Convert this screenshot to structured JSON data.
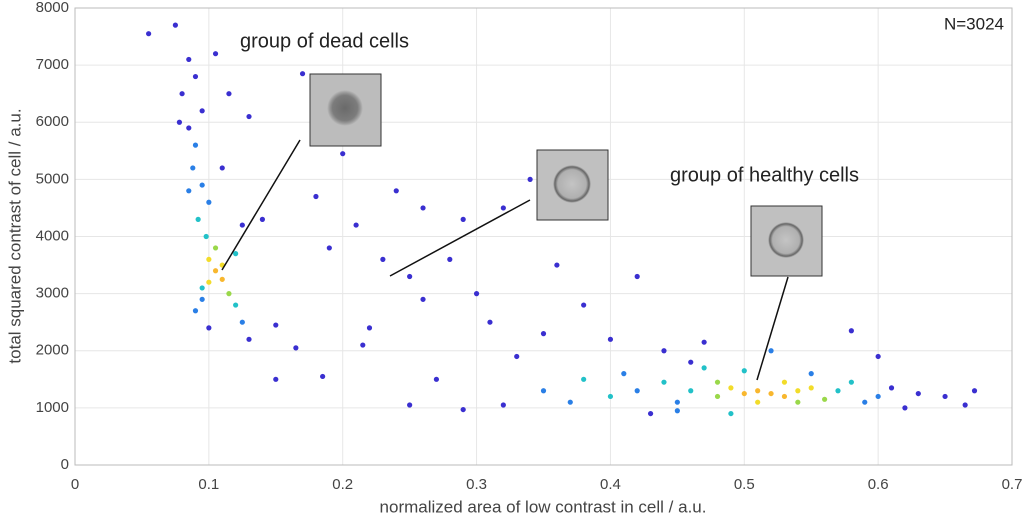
{
  "chart_data": {
    "type": "scatter",
    "xlabel": "normalized area of low contrast in cell / a.u.",
    "ylabel": "total squared contrast of cell / a.u.",
    "annotations": [
      "group of dead cells",
      "group of healthy cells",
      "N=3024"
    ],
    "xlim": [
      0,
      0.7
    ],
    "ylim": [
      0,
      8000
    ],
    "xticks": [
      0,
      0.1,
      0.2,
      0.3,
      0.4,
      0.5,
      0.6,
      0.7
    ],
    "yticks": [
      0,
      1000,
      2000,
      3000,
      4000,
      5000,
      6000,
      7000,
      8000
    ],
    "grid": true,
    "x": [
      0.055,
      0.075,
      0.085,
      0.09,
      0.08,
      0.095,
      0.085,
      0.09,
      0.088,
      0.095,
      0.1,
      0.092,
      0.098,
      0.105,
      0.1,
      0.105,
      0.11,
      0.1,
      0.115,
      0.095,
      0.12,
      0.09,
      0.125,
      0.1,
      0.13,
      0.095,
      0.11,
      0.12,
      0.125,
      0.11,
      0.14,
      0.15,
      0.13,
      0.115,
      0.105,
      0.085,
      0.078,
      0.15,
      0.165,
      0.17,
      0.2,
      0.18,
      0.19,
      0.21,
      0.22,
      0.23,
      0.24,
      0.25,
      0.26,
      0.27,
      0.28,
      0.3,
      0.31,
      0.32,
      0.33,
      0.35,
      0.36,
      0.38,
      0.4,
      0.42,
      0.44,
      0.46,
      0.185,
      0.25,
      0.29,
      0.29,
      0.34,
      0.215,
      0.26,
      0.32,
      0.35,
      0.37,
      0.38,
      0.4,
      0.42,
      0.43,
      0.44,
      0.45,
      0.46,
      0.47,
      0.48,
      0.49,
      0.5,
      0.51,
      0.52,
      0.53,
      0.54,
      0.55,
      0.56,
      0.57,
      0.58,
      0.59,
      0.6,
      0.61,
      0.62,
      0.63,
      0.65,
      0.665,
      0.672,
      0.5,
      0.52,
      0.49,
      0.55,
      0.47,
      0.58,
      0.45,
      0.41,
      0.6,
      0.53,
      0.51,
      0.54,
      0.48
    ],
    "y": [
      7550,
      7700,
      7100,
      6800,
      6500,
      6200,
      5900,
      5600,
      5200,
      4900,
      4600,
      4300,
      4000,
      3800,
      3600,
      3400,
      3250,
      3200,
      3000,
      3100,
      2800,
      2700,
      2500,
      2400,
      2200,
      2900,
      3500,
      3700,
      4200,
      5200,
      4300,
      2450,
      6100,
      6500,
      7200,
      4800,
      6000,
      1500,
      2050,
      6850,
      5450,
      4700,
      3800,
      4200,
      2400,
      3600,
      4800,
      3300,
      2900,
      1500,
      3600,
      3000,
      2500,
      4500,
      1900,
      2300,
      3500,
      2800,
      2200,
      3300,
      2000,
      1800,
      1550,
      1050,
      970,
      4300,
      5000,
      2100,
      4500,
      1050,
      1300,
      1100,
      1500,
      1200,
      1300,
      900,
      1450,
      1100,
      1300,
      1700,
      1200,
      1350,
      1250,
      1300,
      1250,
      1200,
      1300,
      1350,
      1150,
      1300,
      1450,
      1100,
      1200,
      1350,
      1000,
      1250,
      1200,
      1050,
      1300,
      1650,
      2000,
      900,
      1600,
      2150,
      2350,
      950,
      1600,
      1900,
      1450,
      1100,
      1100,
      1450
    ],
    "colors": [
      "#3a2fd0",
      "#3a2fd0",
      "#3a2fd0",
      "#3a2fd0",
      "#3a2fd0",
      "#3a2fd0",
      "#3a2fd0",
      "#2a7fe6",
      "#2a7fe6",
      "#2a7fe6",
      "#2a7fe6",
      "#22c1c8",
      "#22c1c8",
      "#9ad84a",
      "#f2dc2a",
      "#f8b72e",
      "#f8b72e",
      "#f2dc2a",
      "#9ad84a",
      "#22c1c8",
      "#22c1c8",
      "#2a7fe6",
      "#2a7fe6",
      "#3a2fd0",
      "#3a2fd0",
      "#2a7fe6",
      "#f2dc2a",
      "#22c1c8",
      "#3a2fd0",
      "#3a2fd0",
      "#3a2fd0",
      "#3a2fd0",
      "#3a2fd0",
      "#3a2fd0",
      "#3a2fd0",
      "#2a7fe6",
      "#3a2fd0",
      "#3a2fd0",
      "#3a2fd0",
      "#3a2fd0",
      "#3a2fd0",
      "#3a2fd0",
      "#3a2fd0",
      "#3a2fd0",
      "#3a2fd0",
      "#3a2fd0",
      "#3a2fd0",
      "#3a2fd0",
      "#3a2fd0",
      "#3a2fd0",
      "#3a2fd0",
      "#3a2fd0",
      "#3a2fd0",
      "#3a2fd0",
      "#3a2fd0",
      "#3a2fd0",
      "#3a2fd0",
      "#3a2fd0",
      "#3a2fd0",
      "#3a2fd0",
      "#3a2fd0",
      "#3a2fd0",
      "#3a2fd0",
      "#3a2fd0",
      "#3a2fd0",
      "#3a2fd0",
      "#3a2fd0",
      "#3a2fd0",
      "#3a2fd0",
      "#3a2fd0",
      "#2a7fe6",
      "#2a7fe6",
      "#22c1c8",
      "#22c1c8",
      "#2a7fe6",
      "#3a2fd0",
      "#22c1c8",
      "#2a7fe6",
      "#22c1c8",
      "#22c1c8",
      "#9ad84a",
      "#f2dc2a",
      "#f8b72e",
      "#f8b72e",
      "#f8b72e",
      "#f8b72e",
      "#f2dc2a",
      "#f2dc2a",
      "#9ad84a",
      "#22c1c8",
      "#22c1c8",
      "#2a7fe6",
      "#2a7fe6",
      "#3a2fd0",
      "#3a2fd0",
      "#3a2fd0",
      "#3a2fd0",
      "#3a2fd0",
      "#3a2fd0",
      "#22c1c8",
      "#2a7fe6",
      "#22c1c8",
      "#2a7fe6",
      "#3a2fd0",
      "#3a2fd0",
      "#2a7fe6",
      "#2a7fe6",
      "#3a2fd0",
      "#f2dc2a",
      "#f2dc2a",
      "#9ad84a",
      "#9ad84a"
    ]
  }
}
